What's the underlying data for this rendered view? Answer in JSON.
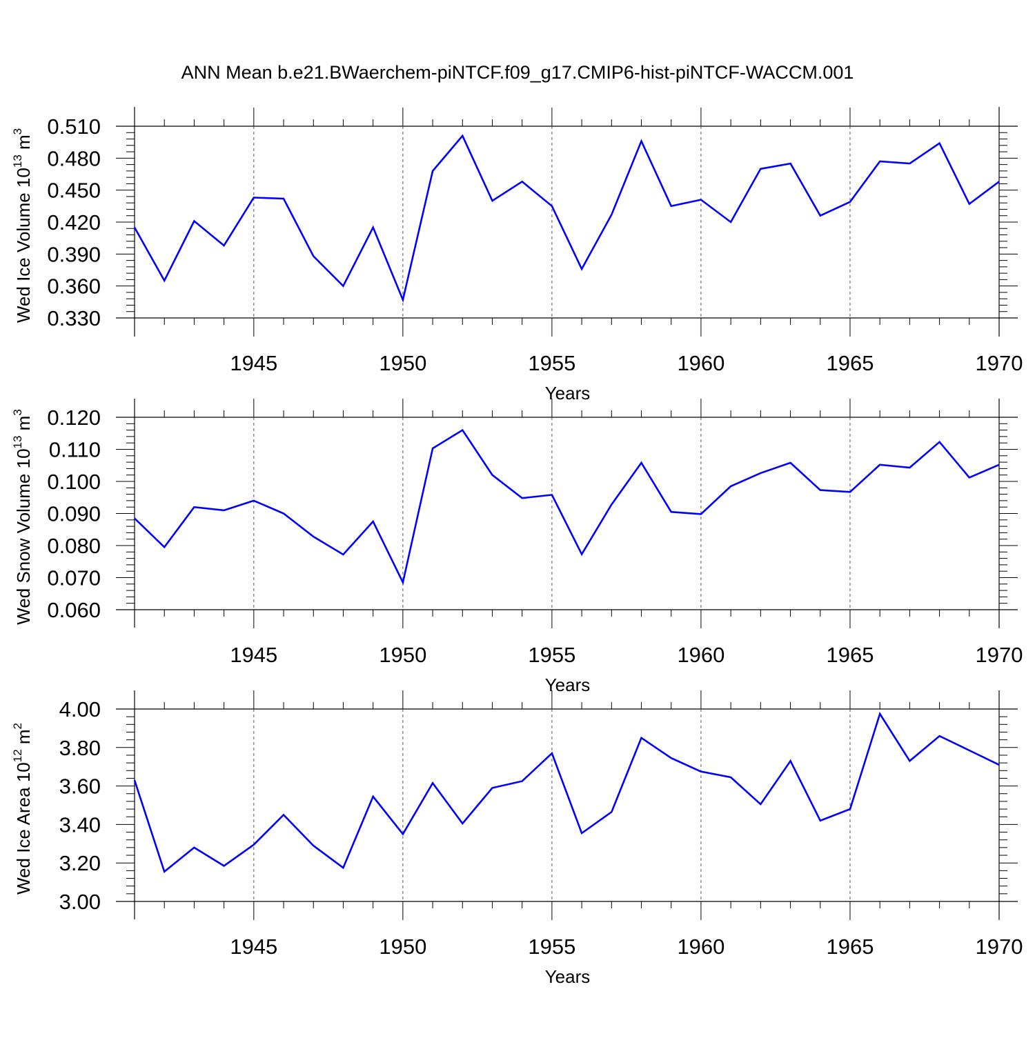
{
  "title": "ANN Mean b.e21.BWaerchem-piNTCF.f09_g17.CMIP6-hist-piNTCF-WACCM.001",
  "colors": {
    "series": "#0000ff",
    "axis": "#000000",
    "grid": "#555555",
    "background": "#ffffff"
  },
  "chart_data": [
    {
      "type": "line",
      "ylabel": {
        "text": "Wed Ice Volume 10",
        "sup": "13",
        "unit": " m",
        "unit_sup": "3"
      },
      "xlabel": "Years",
      "xlim": [
        1941,
        1970
      ],
      "ylim": [
        0.33,
        0.51
      ],
      "yticks": [
        "0.330",
        "0.360",
        "0.390",
        "0.420",
        "0.450",
        "0.480",
        "0.510"
      ],
      "xticks": [
        "1945",
        "1950",
        "1955",
        "1960",
        "1965",
        "1970"
      ],
      "vgrid": [
        1945,
        1950,
        1955,
        1960,
        1965
      ],
      "grid": "dashed vertical at major x ticks",
      "x": [
        1941,
        1942,
        1943,
        1944,
        1945,
        1946,
        1947,
        1948,
        1949,
        1950,
        1951,
        1952,
        1953,
        1954,
        1955,
        1956,
        1957,
        1958,
        1959,
        1960,
        1961,
        1962,
        1963,
        1964,
        1965,
        1966,
        1967,
        1968,
        1969,
        1970
      ],
      "values": [
        0.415,
        0.365,
        0.421,
        0.398,
        0.443,
        0.442,
        0.388,
        0.36,
        0.415,
        0.347,
        0.468,
        0.501,
        0.44,
        0.458,
        0.435,
        0.376,
        0.427,
        0.496,
        0.435,
        0.441,
        0.42,
        0.47,
        0.475,
        0.426,
        0.439,
        0.477,
        0.475,
        0.494,
        0.437,
        0.458
      ]
    },
    {
      "type": "line",
      "ylabel": {
        "text": "Wed Snow Volume 10",
        "sup": "13",
        "unit": " m",
        "unit_sup": "3"
      },
      "xlabel": "Years",
      "xlim": [
        1941,
        1970
      ],
      "ylim": [
        0.06,
        0.12
      ],
      "yticks": [
        "0.060",
        "0.070",
        "0.080",
        "0.090",
        "0.100",
        "0.110",
        "0.120"
      ],
      "xticks": [
        "1945",
        "1950",
        "1955",
        "1960",
        "1965",
        "1970"
      ],
      "vgrid": [
        1945,
        1950,
        1955,
        1960,
        1965
      ],
      "grid": "dashed vertical at major x ticks",
      "x": [
        1941,
        1942,
        1943,
        1944,
        1945,
        1946,
        1947,
        1948,
        1949,
        1950,
        1951,
        1952,
        1953,
        1954,
        1955,
        1956,
        1957,
        1958,
        1959,
        1960,
        1961,
        1962,
        1963,
        1964,
        1965,
        1966,
        1967,
        1968,
        1969,
        1970
      ],
      "values": [
        0.0885,
        0.0795,
        0.092,
        0.091,
        0.094,
        0.09,
        0.0828,
        0.0772,
        0.0875,
        0.0685,
        0.1103,
        0.116,
        0.102,
        0.0948,
        0.0958,
        0.0773,
        0.0928,
        0.1058,
        0.0905,
        0.0898,
        0.0985,
        0.1026,
        0.1058,
        0.0973,
        0.0967,
        0.1052,
        0.1043,
        0.1123,
        0.1012,
        0.1052
      ]
    },
    {
      "type": "line",
      "ylabel": {
        "text": "Wed Ice Area 10",
        "sup": "12",
        "unit": " m",
        "unit_sup": "2"
      },
      "xlabel": "Years",
      "xlim": [
        1941,
        1970
      ],
      "ylim": [
        3.0,
        4.0
      ],
      "yticks": [
        "3.00",
        "3.20",
        "3.40",
        "3.60",
        "3.80",
        "4.00"
      ],
      "xticks": [
        "1945",
        "1950",
        "1955",
        "1960",
        "1965",
        "1970"
      ],
      "vgrid": [
        1945,
        1950,
        1955,
        1960,
        1965
      ],
      "grid": "dashed vertical at major x ticks",
      "x": [
        1941,
        1942,
        1943,
        1944,
        1945,
        1946,
        1947,
        1948,
        1949,
        1950,
        1951,
        1952,
        1953,
        1954,
        1955,
        1956,
        1957,
        1958,
        1959,
        1960,
        1961,
        1962,
        1963,
        1964,
        1965,
        1966,
        1967,
        1968,
        1969,
        1970
      ],
      "values": [
        3.63,
        3.155,
        3.28,
        3.185,
        3.295,
        3.45,
        3.29,
        3.175,
        3.545,
        3.35,
        3.615,
        3.405,
        3.59,
        3.625,
        3.77,
        3.355,
        3.465,
        3.85,
        3.745,
        3.675,
        3.645,
        3.505,
        3.73,
        3.42,
        3.48,
        3.975,
        3.73,
        3.86,
        3.785,
        3.71
      ]
    }
  ]
}
